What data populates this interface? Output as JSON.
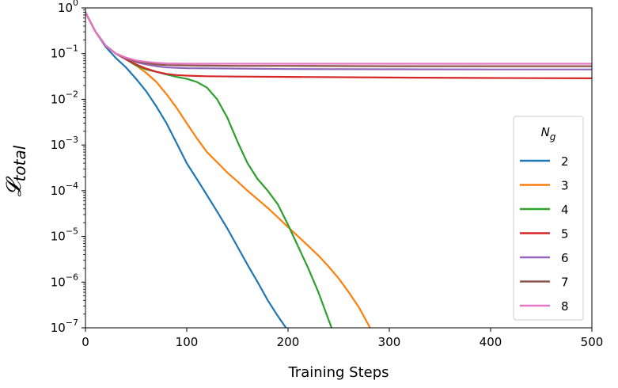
{
  "chart_data": {
    "type": "line",
    "title": "",
    "xlabel": "Training Steps",
    "ylabel": "𝓛",
    "ylabel_sub": "total",
    "y_scale": "log",
    "xlim": [
      0,
      500
    ],
    "ylim": [
      1e-07,
      1
    ],
    "x_ticks": [
      0,
      100,
      200,
      300,
      400,
      500
    ],
    "x_tick_labels": [
      "0",
      "100",
      "200",
      "300",
      "400",
      "500"
    ],
    "y_ticks": [
      1e-07,
      1e-06,
      1e-05,
      0.0001,
      0.001,
      0.01,
      0.1,
      1
    ],
    "y_tick_labels": [
      {
        "base": "10",
        "exp": "−7"
      },
      {
        "base": "10",
        "exp": "−6"
      },
      {
        "base": "10",
        "exp": "−5"
      },
      {
        "base": "10",
        "exp": "−4"
      },
      {
        "base": "10",
        "exp": "−3"
      },
      {
        "base": "10",
        "exp": "−2"
      },
      {
        "base": "10",
        "exp": "−1"
      },
      {
        "base": "10",
        "exp": "0"
      }
    ],
    "grid": false,
    "legend": {
      "placement": "right",
      "title_base": "N",
      "title_sub": "g"
    },
    "series": [
      {
        "name": "2",
        "color": "#1f77b4",
        "points": [
          [
            0,
            0.8
          ],
          [
            10,
            0.3
          ],
          [
            20,
            0.14
          ],
          [
            30,
            0.08
          ],
          [
            40,
            0.05
          ],
          [
            50,
            0.028
          ],
          [
            60,
            0.015
          ],
          [
            70,
            0.007
          ],
          [
            80,
            0.003
          ],
          [
            90,
            0.0011
          ],
          [
            100,
            0.0004
          ],
          [
            110,
            0.00018
          ],
          [
            120,
            8e-05
          ],
          [
            130,
            3.5e-05
          ],
          [
            140,
            1.5e-05
          ],
          [
            150,
            6e-06
          ],
          [
            160,
            2.4e-06
          ],
          [
            170,
            1e-06
          ],
          [
            180,
            4e-07
          ],
          [
            190,
            1.8e-07
          ],
          [
            198,
            1e-07
          ]
        ]
      },
      {
        "name": "3",
        "color": "#ff7f0e",
        "points": [
          [
            0,
            0.8
          ],
          [
            10,
            0.3
          ],
          [
            20,
            0.15
          ],
          [
            30,
            0.1
          ],
          [
            40,
            0.075
          ],
          [
            50,
            0.055
          ],
          [
            60,
            0.038
          ],
          [
            70,
            0.024
          ],
          [
            80,
            0.013
          ],
          [
            90,
            0.0065
          ],
          [
            100,
            0.003
          ],
          [
            110,
            0.0014
          ],
          [
            120,
            0.0007
          ],
          [
            130,
            0.00042
          ],
          [
            140,
            0.00025
          ],
          [
            150,
            0.00016
          ],
          [
            160,
            0.0001
          ],
          [
            170,
            6.5e-05
          ],
          [
            180,
            4.2e-05
          ],
          [
            190,
            2.6e-05
          ],
          [
            200,
            1.6e-05
          ],
          [
            210,
            1e-05
          ],
          [
            220,
            6.2e-06
          ],
          [
            230,
            3.8e-06
          ],
          [
            240,
            2.2e-06
          ],
          [
            250,
            1.2e-06
          ],
          [
            260,
            6e-07
          ],
          [
            270,
            2.8e-07
          ],
          [
            281,
            1e-07
          ]
        ]
      },
      {
        "name": "4",
        "color": "#2ca02c",
        "points": [
          [
            0,
            0.8
          ],
          [
            10,
            0.3
          ],
          [
            20,
            0.15
          ],
          [
            30,
            0.1
          ],
          [
            40,
            0.075
          ],
          [
            50,
            0.055
          ],
          [
            60,
            0.045
          ],
          [
            70,
            0.04
          ],
          [
            80,
            0.035
          ],
          [
            90,
            0.031
          ],
          [
            100,
            0.028
          ],
          [
            110,
            0.024
          ],
          [
            120,
            0.018
          ],
          [
            130,
            0.01
          ],
          [
            140,
            0.004
          ],
          [
            150,
            0.0012
          ],
          [
            160,
            0.0004
          ],
          [
            170,
            0.00018
          ],
          [
            180,
            0.0001
          ],
          [
            190,
            5e-05
          ],
          [
            200,
            1.8e-05
          ],
          [
            210,
            6e-06
          ],
          [
            220,
            2e-06
          ],
          [
            230,
            6e-07
          ],
          [
            240,
            1.5e-07
          ],
          [
            243,
            1e-07
          ]
        ]
      },
      {
        "name": "5",
        "color": "#d62728",
        "points": [
          [
            0,
            0.8
          ],
          [
            10,
            0.3
          ],
          [
            20,
            0.15
          ],
          [
            30,
            0.1
          ],
          [
            40,
            0.075
          ],
          [
            50,
            0.058
          ],
          [
            60,
            0.047
          ],
          [
            70,
            0.04
          ],
          [
            80,
            0.036
          ],
          [
            90,
            0.034
          ],
          [
            100,
            0.033
          ],
          [
            120,
            0.032
          ],
          [
            150,
            0.0315
          ],
          [
            200,
            0.031
          ],
          [
            300,
            0.03
          ],
          [
            400,
            0.0293
          ],
          [
            500,
            0.0288
          ]
        ]
      },
      {
        "name": "6",
        "color": "#9467bd",
        "points": [
          [
            0,
            0.8
          ],
          [
            10,
            0.3
          ],
          [
            20,
            0.15
          ],
          [
            30,
            0.1
          ],
          [
            40,
            0.078
          ],
          [
            50,
            0.065
          ],
          [
            60,
            0.058
          ],
          [
            70,
            0.053
          ],
          [
            80,
            0.05
          ],
          [
            100,
            0.048
          ],
          [
            150,
            0.047
          ],
          [
            200,
            0.046
          ],
          [
            300,
            0.0455
          ],
          [
            400,
            0.045
          ],
          [
            500,
            0.045
          ]
        ]
      },
      {
        "name": "7",
        "color": "#8c564b",
        "points": [
          [
            0,
            0.8
          ],
          [
            10,
            0.3
          ],
          [
            20,
            0.15
          ],
          [
            30,
            0.1
          ],
          [
            40,
            0.08
          ],
          [
            50,
            0.068
          ],
          [
            60,
            0.062
          ],
          [
            70,
            0.058
          ],
          [
            80,
            0.056
          ],
          [
            100,
            0.055
          ],
          [
            150,
            0.054
          ],
          [
            200,
            0.054
          ],
          [
            300,
            0.053
          ],
          [
            400,
            0.053
          ],
          [
            500,
            0.053
          ]
        ]
      },
      {
        "name": "8",
        "color": "#e377c2",
        "points": [
          [
            0,
            0.8
          ],
          [
            10,
            0.3
          ],
          [
            20,
            0.15
          ],
          [
            30,
            0.1
          ],
          [
            40,
            0.082
          ],
          [
            50,
            0.071
          ],
          [
            60,
            0.066
          ],
          [
            70,
            0.063
          ],
          [
            80,
            0.061
          ],
          [
            100,
            0.06
          ],
          [
            150,
            0.06
          ],
          [
            200,
            0.06
          ],
          [
            300,
            0.06
          ],
          [
            400,
            0.06
          ],
          [
            500,
            0.06
          ]
        ]
      }
    ]
  }
}
